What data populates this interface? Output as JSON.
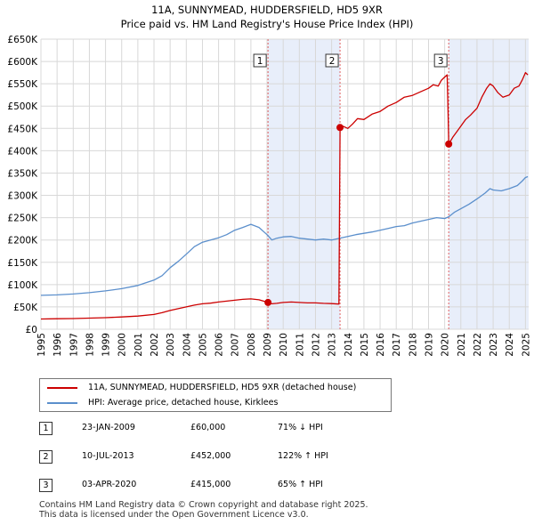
{
  "chart_data": {
    "type": "line",
    "title": "11A, SUNNYMEAD, HUDDERSFIELD, HD5 9XR",
    "subtitle": "Price paid vs. HM Land Registry's House Price Index (HPI)",
    "xlim": [
      1995,
      2025.2
    ],
    "ylim": [
      0,
      650000
    ],
    "y_ticks": [
      {
        "value": 0,
        "label": "£0"
      },
      {
        "value": 50000,
        "label": "£50K"
      },
      {
        "value": 100000,
        "label": "£100K"
      },
      {
        "value": 150000,
        "label": "£150K"
      },
      {
        "value": 200000,
        "label": "£200K"
      },
      {
        "value": 250000,
        "label": "£250K"
      },
      {
        "value": 300000,
        "label": "£300K"
      },
      {
        "value": 350000,
        "label": "£350K"
      },
      {
        "value": 400000,
        "label": "£400K"
      },
      {
        "value": 450000,
        "label": "£450K"
      },
      {
        "value": 500000,
        "label": "£500K"
      },
      {
        "value": 550000,
        "label": "£550K"
      },
      {
        "value": 600000,
        "label": "£600K"
      },
      {
        "value": 650000,
        "label": "£650K"
      }
    ],
    "x_ticks": [
      "1995",
      "1996",
      "1997",
      "1998",
      "1999",
      "2000",
      "2001",
      "2002",
      "2003",
      "2004",
      "2005",
      "2006",
      "2007",
      "2008",
      "2009",
      "2010",
      "2011",
      "2012",
      "2013",
      "2014",
      "2015",
      "2016",
      "2017",
      "2018",
      "2019",
      "2020",
      "2021",
      "2022",
      "2023",
      "2024",
      "2025"
    ],
    "grid": true,
    "shaded_ranges": [
      [
        2009.06,
        2013.52
      ],
      [
        2020.25,
        2025.2
      ]
    ],
    "series": [
      {
        "name": "11A, SUNNYMEAD, HUDDERSFIELD, HD5 9XR (detached house)",
        "color": "#cc0000",
        "points": [
          [
            1995.0,
            23000
          ],
          [
            1996.0,
            23500
          ],
          [
            1997.0,
            24000
          ],
          [
            1998.0,
            25000
          ],
          [
            1999.0,
            26000
          ],
          [
            2000.0,
            27500
          ],
          [
            2001.0,
            29500
          ],
          [
            2002.0,
            33000
          ],
          [
            2002.5,
            37000
          ],
          [
            2003.0,
            42000
          ],
          [
            2003.5,
            46000
          ],
          [
            2004.0,
            50000
          ],
          [
            2004.5,
            54000
          ],
          [
            2005.0,
            57000
          ],
          [
            2005.5,
            58500
          ],
          [
            2006.0,
            61000
          ],
          [
            2006.5,
            63000
          ],
          [
            2007.0,
            65000
          ],
          [
            2007.5,
            67000
          ],
          [
            2008.0,
            68000
          ],
          [
            2008.5,
            66000
          ],
          [
            2009.06,
            60000
          ],
          [
            2009.3,
            57000
          ],
          [
            2009.6,
            58000
          ],
          [
            2010.0,
            60000
          ],
          [
            2010.5,
            61000
          ],
          [
            2011.0,
            60000
          ],
          [
            2011.5,
            59000
          ],
          [
            2012.0,
            59000
          ],
          [
            2012.5,
            58000
          ],
          [
            2013.0,
            57500
          ],
          [
            2013.45,
            56500
          ],
          [
            2013.52,
            452000
          ],
          [
            2013.7,
            455000
          ],
          [
            2014.0,
            450000
          ],
          [
            2014.3,
            460000
          ],
          [
            2014.6,
            472000
          ],
          [
            2015.0,
            470000
          ],
          [
            2015.5,
            482000
          ],
          [
            2016.0,
            488000
          ],
          [
            2016.5,
            500000
          ],
          [
            2017.0,
            508000
          ],
          [
            2017.5,
            520000
          ],
          [
            2018.0,
            524000
          ],
          [
            2018.5,
            532000
          ],
          [
            2019.0,
            540000
          ],
          [
            2019.3,
            548000
          ],
          [
            2019.6,
            545000
          ],
          [
            2019.8,
            558000
          ],
          [
            2020.0,
            565000
          ],
          [
            2020.15,
            570000
          ],
          [
            2020.2,
            500000
          ],
          [
            2020.25,
            415000
          ],
          [
            2020.5,
            430000
          ],
          [
            2020.8,
            445000
          ],
          [
            2021.0,
            455000
          ],
          [
            2021.3,
            470000
          ],
          [
            2021.6,
            480000
          ],
          [
            2022.0,
            495000
          ],
          [
            2022.3,
            520000
          ],
          [
            2022.6,
            540000
          ],
          [
            2022.8,
            550000
          ],
          [
            2023.0,
            545000
          ],
          [
            2023.3,
            530000
          ],
          [
            2023.6,
            520000
          ],
          [
            2024.0,
            525000
          ],
          [
            2024.3,
            540000
          ],
          [
            2024.6,
            545000
          ],
          [
            2024.8,
            558000
          ],
          [
            2025.0,
            575000
          ],
          [
            2025.15,
            570000
          ]
        ]
      },
      {
        "name": "HPI: Average price, detached house, Kirklees",
        "color": "#5b8fcc",
        "points": [
          [
            1995.0,
            76000
          ],
          [
            1996.0,
            77000
          ],
          [
            1997.0,
            79000
          ],
          [
            1998.0,
            82000
          ],
          [
            1999.0,
            86000
          ],
          [
            2000.0,
            91000
          ],
          [
            2001.0,
            98000
          ],
          [
            2002.0,
            110000
          ],
          [
            2002.5,
            120000
          ],
          [
            2003.0,
            138000
          ],
          [
            2003.5,
            152000
          ],
          [
            2004.0,
            168000
          ],
          [
            2004.5,
            185000
          ],
          [
            2005.0,
            195000
          ],
          [
            2005.5,
            200000
          ],
          [
            2006.0,
            205000
          ],
          [
            2006.5,
            212000
          ],
          [
            2007.0,
            222000
          ],
          [
            2007.5,
            228000
          ],
          [
            2008.0,
            235000
          ],
          [
            2008.5,
            228000
          ],
          [
            2009.0,
            212000
          ],
          [
            2009.3,
            200000
          ],
          [
            2009.6,
            204000
          ],
          [
            2010.0,
            207000
          ],
          [
            2010.5,
            208000
          ],
          [
            2011.0,
            204000
          ],
          [
            2011.5,
            202000
          ],
          [
            2012.0,
            200000
          ],
          [
            2012.5,
            202000
          ],
          [
            2013.0,
            200000
          ],
          [
            2013.5,
            204000
          ],
          [
            2014.0,
            208000
          ],
          [
            2014.5,
            212000
          ],
          [
            2015.0,
            215000
          ],
          [
            2015.5,
            218000
          ],
          [
            2016.0,
            222000
          ],
          [
            2016.5,
            226000
          ],
          [
            2017.0,
            230000
          ],
          [
            2017.5,
            232000
          ],
          [
            2018.0,
            238000
          ],
          [
            2018.5,
            242000
          ],
          [
            2019.0,
            246000
          ],
          [
            2019.5,
            250000
          ],
          [
            2020.0,
            248000
          ],
          [
            2020.25,
            252000
          ],
          [
            2020.6,
            262000
          ],
          [
            2021.0,
            270000
          ],
          [
            2021.5,
            280000
          ],
          [
            2022.0,
            292000
          ],
          [
            2022.5,
            305000
          ],
          [
            2022.8,
            315000
          ],
          [
            2023.0,
            312000
          ],
          [
            2023.5,
            310000
          ],
          [
            2024.0,
            315000
          ],
          [
            2024.5,
            322000
          ],
          [
            2024.8,
            332000
          ],
          [
            2025.0,
            340000
          ],
          [
            2025.15,
            342000
          ]
        ]
      }
    ],
    "sales": [
      {
        "label": "1",
        "x": 2009.06,
        "price": 60000,
        "date": "23-JAN-2009",
        "price_label": "£60,000",
        "hpi": "71% ↓ HPI"
      },
      {
        "label": "2",
        "x": 2013.52,
        "price": 452000,
        "date": "10-JUL-2013",
        "price_label": "£452,000",
        "hpi": "122% ↑ HPI"
      },
      {
        "label": "3",
        "x": 2020.25,
        "price": 415000,
        "date": "03-APR-2020",
        "price_label": "£415,000",
        "hpi": "65% ↑ HPI"
      }
    ]
  },
  "legend": {
    "property_label": "11A, SUNNYMEAD, HUDDERSFIELD, HD5 9XR (detached house)",
    "hpi_label": "HPI: Average price, detached house, Kirklees"
  },
  "footer": {
    "line1": "Contains HM Land Registry data © Crown copyright and database right 2025.",
    "line2": "This data is licensed under the Open Government Licence v3.0."
  },
  "colors": {
    "property": "#cc0000",
    "hpi": "#5b8fcc",
    "shade": "#e8eefa",
    "grid": "#d8d8d8"
  }
}
